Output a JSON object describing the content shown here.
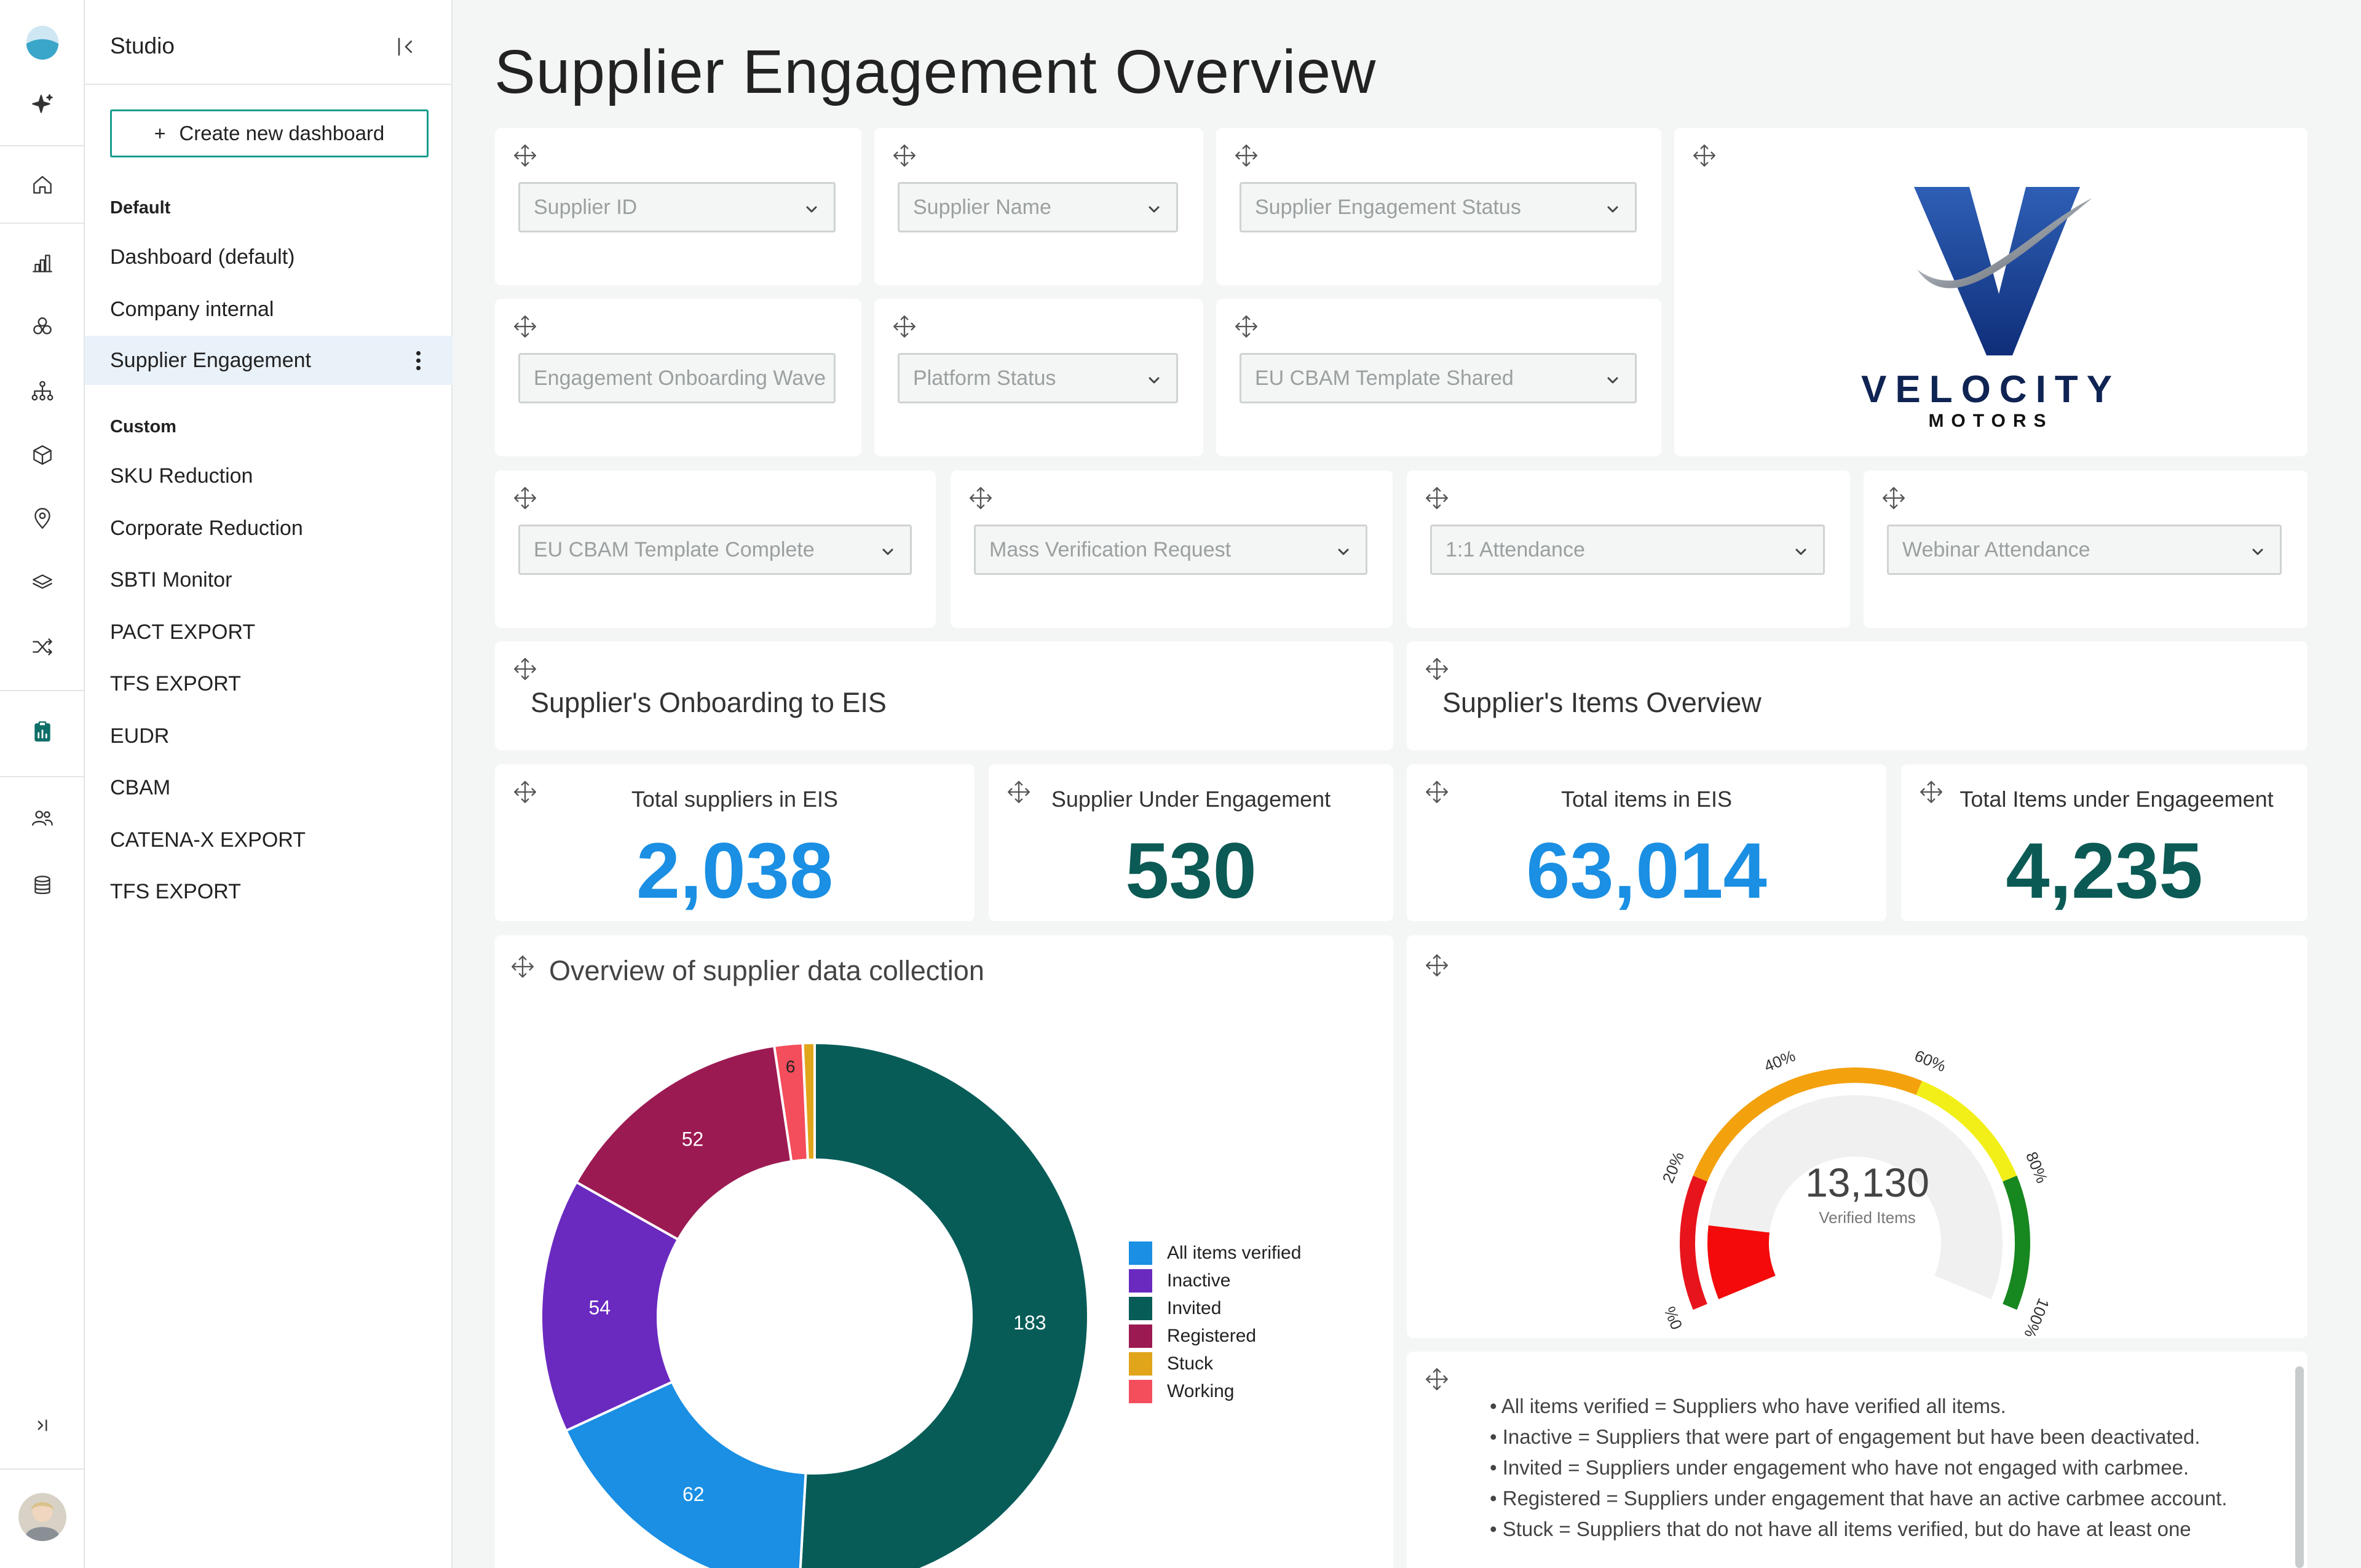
{
  "sidebar": {
    "title": "Studio",
    "create_label": "Create new dashboard",
    "default_label": "Default",
    "default_items": [
      "Dashboard (default)",
      "Company internal",
      "Supplier Engagement"
    ],
    "custom_label": "Custom",
    "custom_items": [
      "SKU Reduction",
      "Corporate Reduction",
      "SBTI Monitor",
      "PACT EXPORT",
      "TFS EXPORT",
      "EUDR",
      "CBAM",
      "CATENA-X EXPORT",
      "TFS EXPORT"
    ]
  },
  "page_title": "Supplier Engagement Overview",
  "filters": [
    "Supplier ID",
    "Supplier Name",
    "Supplier Engagement Status",
    "Engagement Onboarding Wave",
    "Platform Status",
    "EU CBAM Template Shared",
    "EU CBAM Template Complete",
    "Mass Verification Request",
    "1:1 Attendance",
    "Webinar Attendance"
  ],
  "logo": {
    "brand": "VELOCITY",
    "sub": "MOTORS"
  },
  "sections": {
    "onboarding": "Supplier's Onboarding to EIS",
    "items": "Supplier's Items Overview"
  },
  "kpis": [
    {
      "label": "Total suppliers in EIS",
      "value": "2,038",
      "color": "#1a8fe3"
    },
    {
      "label": "Supplier Under Engagement",
      "value": "530",
      "color": "#0b5a55"
    },
    {
      "label": "Total items in EIS",
      "value": "63,014",
      "color": "#1a8fe3"
    },
    {
      "label": "Total Items under Engageement",
      "value": "4,235",
      "color": "#0b5a55"
    }
  ],
  "chart_data": [
    {
      "type": "pie",
      "title": "Overview of supplier data collection",
      "donut": true,
      "legend": "right",
      "categories": [
        "All items verified",
        "Inactive",
        "Invited",
        "Registered",
        "Stuck",
        "Working"
      ],
      "colors": [
        "#1a8fe3",
        "#6a2ac0",
        "#075c58",
        "#9c1a52",
        "#e1a51b",
        "#f44d5c"
      ],
      "legend_text": [
        "All items verified",
        "Inactive",
        "Invited",
        "Registered",
        "Stuck",
        "Working"
      ],
      "slices": [
        {
          "label": "Invited",
          "value": 183,
          "color": "#075c58",
          "shown": "183"
        },
        {
          "label": "All items verified",
          "value": 62,
          "color": "#1a8fe3",
          "shown": "62"
        },
        {
          "label": "Inactive",
          "value": 54,
          "color": "#6a2ac0",
          "shown": "54"
        },
        {
          "label": "Registered",
          "value": 52,
          "color": "#9c1a52",
          "shown": "52"
        },
        {
          "label": "Working",
          "value": 6,
          "color": "#f44d5c",
          "shown": "6"
        },
        {
          "label": "Stuck",
          "value": 2.5,
          "color": "#e1a51b",
          "shown": ""
        }
      ]
    },
    {
      "type": "gauge",
      "value_label": "13,130",
      "sublabel": "Verified Items",
      "fraction": 0.13,
      "ticks": [
        "0%",
        "20%",
        "40%",
        "60%",
        "80%",
        "100%"
      ],
      "bands": [
        {
          "from": 0,
          "to": 0.2,
          "color": "#e8141c"
        },
        {
          "from": 0.2,
          "to": 0.6,
          "color": "#f3a10d"
        },
        {
          "from": 0.6,
          "to": 0.8,
          "color": "#f2ef18"
        },
        {
          "from": 0.8,
          "to": 1.0,
          "color": "#17871f"
        }
      ]
    }
  ],
  "notes": [
    "All items verified = Suppliers who have verified all items.",
    "Inactive = Suppliers that were part of engagement but have been deactivated.",
    "Invited = Suppliers under engagement who have not engaged with carbmee.",
    "Registered = Suppliers under engagement that have an active carbmee account.",
    "Stuck = Suppliers that do not have all items verified, but do have at least one"
  ]
}
